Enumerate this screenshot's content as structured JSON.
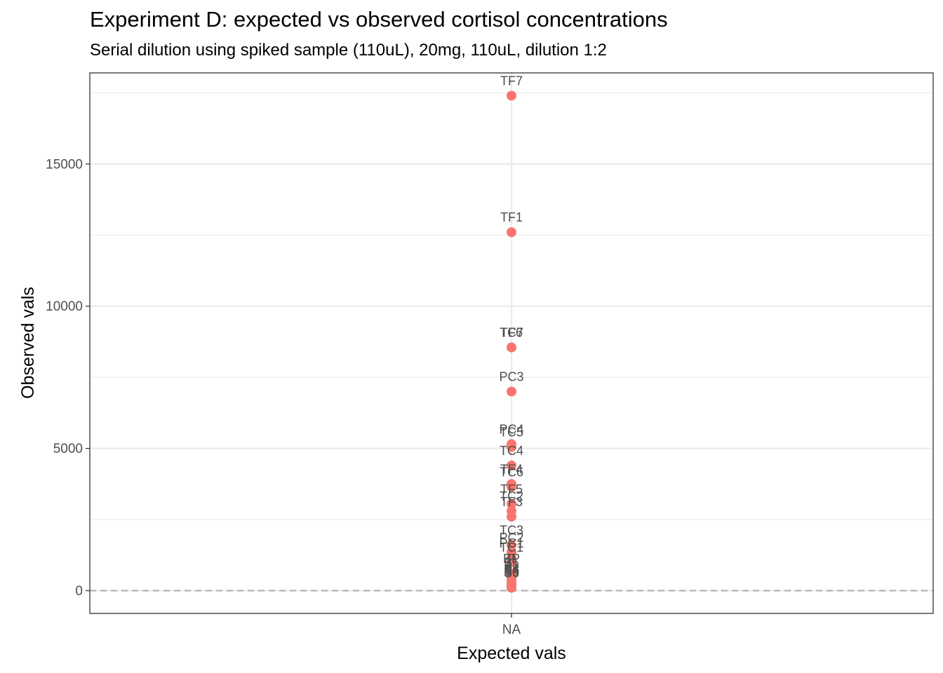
{
  "chart_data": {
    "type": "scatter",
    "title": "Experiment D: expected vs observed cortisol concentrations",
    "subtitle": "Serial dilution using spiked sample (110uL), 20mg, 110uL, dilution 1:2",
    "xlabel": "Expected vals",
    "ylabel": "Observed vals",
    "x_categories": [
      "NA"
    ],
    "ylim": [
      -800,
      18200
    ],
    "y_ticks": [
      0,
      5000,
      10000,
      15000
    ],
    "y_tick_labels": [
      "0",
      "5000",
      "10000",
      "15000"
    ],
    "reference_line": {
      "y": 0,
      "style": "dashed",
      "color": "#b3b3b3"
    },
    "point_color": "#f8766d",
    "points": [
      {
        "label": "TF7",
        "x": "NA",
        "y": 17400
      },
      {
        "label": "TF1",
        "x": "NA",
        "y": 12600
      },
      {
        "label": "TC7",
        "x": "NA",
        "y": 8550
      },
      {
        "label": "TF6",
        "x": "NA",
        "y": 8550
      },
      {
        "label": "PC3",
        "x": "NA",
        "y": 7000
      },
      {
        "label": "PC4",
        "x": "NA",
        "y": 5150
      },
      {
        "label": "TC5",
        "x": "NA",
        "y": 5050
      },
      {
        "label": "TC4",
        "x": "NA",
        "y": 4400
      },
      {
        "label": "TF4",
        "x": "NA",
        "y": 3750
      },
      {
        "label": "TC6",
        "x": "NA",
        "y": 3650
      },
      {
        "label": "TF5",
        "x": "NA",
        "y": 3050
      },
      {
        "label": "TC2",
        "x": "NA",
        "y": 2800
      },
      {
        "label": "TF3",
        "x": "NA",
        "y": 2600
      },
      {
        "label": "TC3",
        "x": "NA",
        "y": 1600
      },
      {
        "label": "PC2",
        "x": "NA",
        "y": 1350
      },
      {
        "label": "PC1",
        "x": "NA",
        "y": 1150
      },
      {
        "label": "TC1",
        "x": "NA",
        "y": 1000
      },
      {
        "label": "BP",
        "x": "NA",
        "y": 600
      },
      {
        "label": "P",
        "x": "NA",
        "y": 600
      },
      {
        "label": "S1",
        "x": "NA",
        "y": 450
      },
      {
        "label": "S2",
        "x": "NA",
        "y": 350
      },
      {
        "label": "S3",
        "x": "NA",
        "y": 250
      },
      {
        "label": "S4",
        "x": "NA",
        "y": 200
      },
      {
        "label": "S5",
        "x": "NA",
        "y": 150
      },
      {
        "label": "S6",
        "x": "NA",
        "y": 100
      }
    ]
  }
}
